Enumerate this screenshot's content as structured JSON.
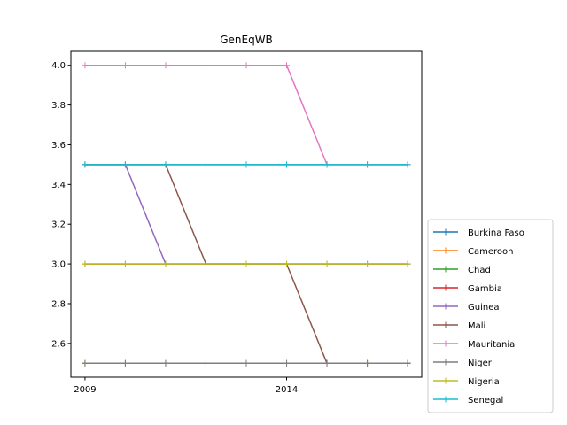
{
  "chart_data": {
    "type": "line",
    "title": "GenEqWB",
    "xlabel": "",
    "ylabel": "",
    "x": [
      2009,
      2010,
      2011,
      2012,
      2013,
      2014,
      2015,
      2016,
      2017
    ],
    "xlim": [
      2008.65,
      2017.35
    ],
    "ylim": [
      2.43,
      4.07
    ],
    "xticks": [
      2009,
      2014
    ],
    "xtick_labels": [
      "2009",
      "2014"
    ],
    "yticks": [
      2.6,
      2.8,
      3.0,
      3.2,
      3.4,
      3.6,
      3.8,
      4.0
    ],
    "ytick_labels": [
      "2.6",
      "2.8",
      "3.0",
      "3.2",
      "3.4",
      "3.6",
      "3.8",
      "4.0"
    ],
    "grid": false,
    "legend_position": "lower-right outside plot",
    "marker": "+",
    "series": [
      {
        "name": "Burkina Faso",
        "color": "#1f77b4",
        "values": [
          3.5,
          3.5,
          3.5,
          3.5,
          3.5,
          3.5,
          3.5,
          3.5,
          3.5
        ]
      },
      {
        "name": "Cameroon",
        "color": "#ff7f0e",
        "values": [
          2.5,
          2.5,
          2.5,
          2.5,
          2.5,
          2.5,
          2.5,
          2.5,
          2.5
        ]
      },
      {
        "name": "Chad",
        "color": "#2ca02c",
        "values": [
          2.5,
          2.5,
          2.5,
          2.5,
          2.5,
          2.5,
          2.5,
          2.5,
          2.5
        ]
      },
      {
        "name": "Gambia",
        "color": "#d62728",
        "values": [
          3.0,
          3.0,
          3.0,
          3.0,
          3.0,
          3.0,
          3.0,
          3.0,
          3.0
        ]
      },
      {
        "name": "Guinea",
        "color": "#9467bd",
        "values": [
          3.5,
          3.5,
          3.0,
          3.0,
          3.0,
          3.0,
          3.0,
          3.0,
          3.0
        ]
      },
      {
        "name": "Mali",
        "color": "#8c564b",
        "values": [
          3.5,
          3.5,
          3.5,
          3.0,
          3.0,
          3.0,
          2.5,
          2.5,
          2.5
        ]
      },
      {
        "name": "Mauritania",
        "color": "#e377c2",
        "values": [
          4.0,
          4.0,
          4.0,
          4.0,
          4.0,
          4.0,
          3.5,
          3.5,
          3.5
        ]
      },
      {
        "name": "Niger",
        "color": "#7f7f7f",
        "values": [
          2.5,
          2.5,
          2.5,
          2.5,
          2.5,
          2.5,
          2.5,
          2.5,
          2.5
        ]
      },
      {
        "name": "Nigeria",
        "color": "#bcbd22",
        "values": [
          3.0,
          3.0,
          3.0,
          3.0,
          3.0,
          3.0,
          3.0,
          3.0,
          3.0
        ]
      },
      {
        "name": "Senegal",
        "color": "#17becf",
        "values": [
          3.5,
          3.5,
          3.5,
          3.5,
          3.5,
          3.5,
          3.5,
          3.5,
          3.5
        ]
      }
    ]
  }
}
